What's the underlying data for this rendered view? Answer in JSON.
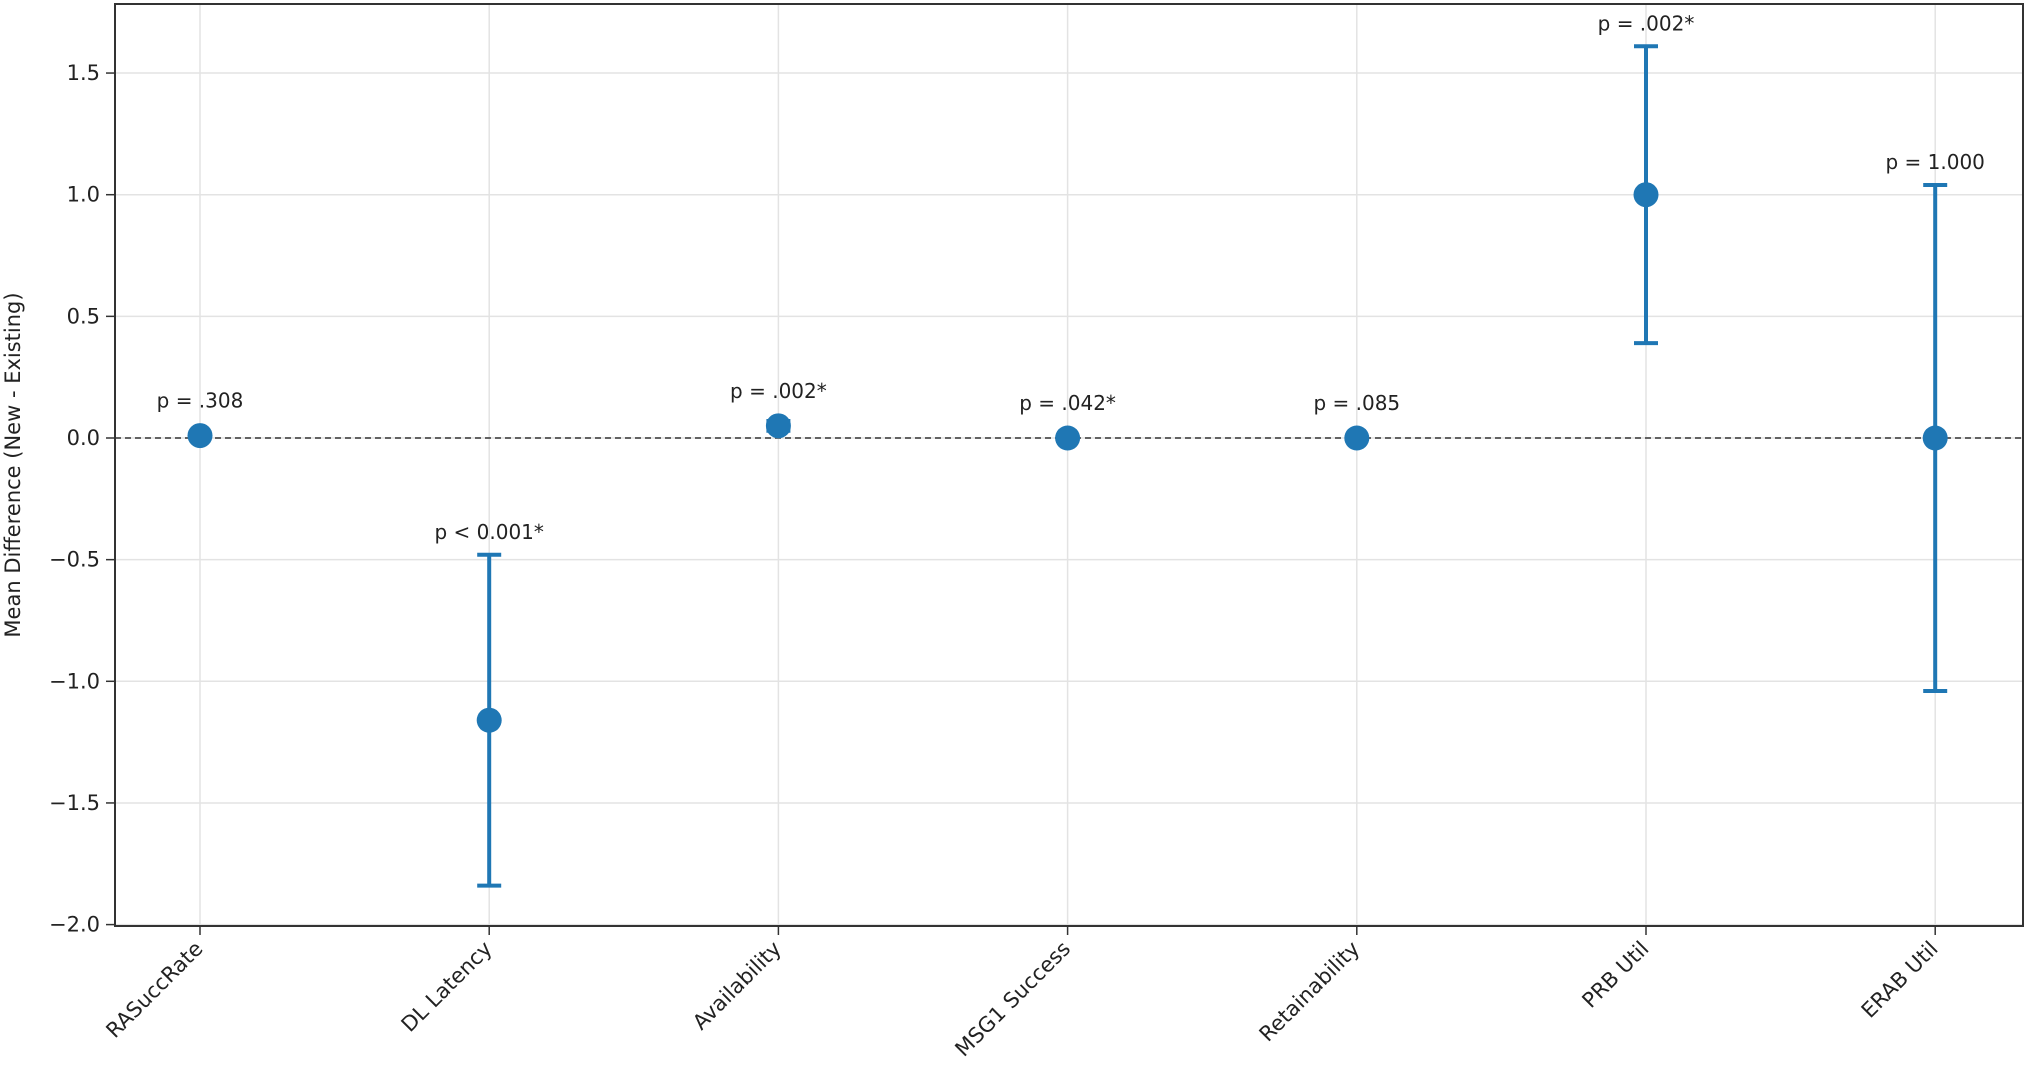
{
  "chart_data": {
    "type": "scatter",
    "title": "",
    "xlabel": "",
    "ylabel": "Mean Difference (New - Existing)",
    "ylim": [
      -2.05,
      1.78
    ],
    "yticks": [
      1.5,
      1.0,
      0.5,
      0.0,
      -0.5,
      -1.0,
      -1.5,
      -2.0
    ],
    "ytick_labels": [
      "1.5",
      "1.0",
      "0.5",
      "0.0",
      "−0.5",
      "−1.0",
      "−1.5",
      "−2.0"
    ],
    "grid": true,
    "reference_line": 0.0,
    "point_color": "#1f77b4",
    "categories": [
      "RASuccRate",
      "DL Latency",
      "Availability",
      "MSG1 Success",
      "Retainability",
      "PRB Util",
      "ERAB Util"
    ],
    "values": [
      0.01,
      -1.16,
      0.05,
      0.0,
      0.0,
      1.0,
      0.0
    ],
    "ci_low": [
      0.01,
      -1.84,
      0.03,
      0.0,
      0.0,
      0.39,
      -1.04
    ],
    "ci_high": [
      0.01,
      -0.48,
      0.07,
      0.0,
      0.0,
      1.61,
      1.04
    ],
    "p_labels": [
      "p = .308",
      "p < 0.001*",
      "p = .002*",
      "p = .042*",
      "p = .085",
      "p = .002*",
      "p = 1.000"
    ]
  }
}
